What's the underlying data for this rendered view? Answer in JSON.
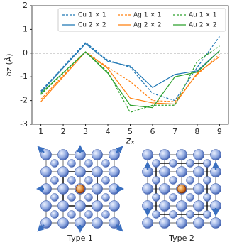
{
  "chart_data": {
    "type": "line",
    "ylabel": "δz (Å)",
    "xlabel": "zₓ",
    "x": [
      1,
      3,
      4,
      5,
      6,
      7,
      8,
      9
    ],
    "xlim": [
      0.6,
      9.4
    ],
    "xticks": [
      1,
      2,
      3,
      4,
      5,
      6,
      7,
      8,
      9
    ],
    "ylim": [
      -3,
      2
    ],
    "yticks": [
      -3,
      -2,
      -1,
      0,
      1,
      2
    ],
    "reference_line": 0,
    "legend": "upper right",
    "series": [
      {
        "name": "Cu 1 × 1",
        "color": "#1f77b4",
        "dashed": true,
        "values": [
          -1.6,
          0.45,
          -0.3,
          -0.6,
          -1.7,
          -2.0,
          -0.6,
          0.7
        ]
      },
      {
        "name": "Cu 2 × 2",
        "color": "#1f77b4",
        "dashed": false,
        "values": [
          -1.65,
          0.4,
          -0.35,
          -0.55,
          -1.45,
          -0.9,
          -0.75,
          0.1
        ]
      },
      {
        "name": "Ag 1 × 1",
        "color": "#ff7f0e",
        "dashed": true,
        "values": [
          -1.95,
          0.05,
          -0.6,
          -1.2,
          -2.0,
          -2.05,
          -0.9,
          -0.05
        ]
      },
      {
        "name": "Ag 2 × 2",
        "color": "#ff7f0e",
        "dashed": false,
        "values": [
          -2.05,
          0.05,
          -0.65,
          -1.9,
          -2.1,
          -2.15,
          -0.85,
          -0.15
        ]
      },
      {
        "name": "Au 1 × 1",
        "color": "#2ca02c",
        "dashed": true,
        "values": [
          -1.75,
          0.05,
          -0.8,
          -2.5,
          -2.2,
          -2.2,
          -0.35,
          0.3
        ]
      },
      {
        "name": "Au 2 × 2",
        "color": "#2ca02c",
        "dashed": false,
        "values": [
          -1.7,
          0.05,
          -0.85,
          -2.2,
          -2.3,
          -1.0,
          -0.8,
          0.1
        ]
      }
    ]
  },
  "panels": [
    {
      "label": "Type 1"
    },
    {
      "label": "Type 2"
    }
  ]
}
